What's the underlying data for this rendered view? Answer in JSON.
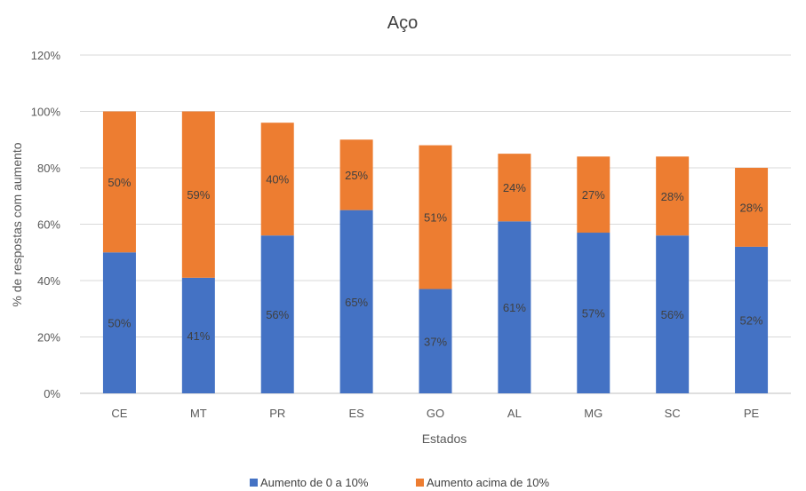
{
  "chart_data": {
    "type": "bar",
    "stacked": true,
    "title": "Aço",
    "xlabel": "Estados",
    "ylabel": "% de respostas com aumento",
    "categories": [
      "CE",
      "MT",
      "PR",
      "ES",
      "GO",
      "AL",
      "MG",
      "SC",
      "PE"
    ],
    "series": [
      {
        "name": "Aumento de 0 a 10%",
        "values": [
          50,
          41,
          56,
          65,
          37,
          61,
          57,
          56,
          52
        ],
        "labels": [
          "50%",
          "41%",
          "56%",
          "65%",
          "37%",
          "61%",
          "57%",
          "56%",
          "52%"
        ],
        "color": "#4472C4"
      },
      {
        "name": "Aumento acima de 10%",
        "values": [
          50,
          59,
          40,
          25,
          51,
          24,
          27,
          28,
          28
        ],
        "labels": [
          "50%",
          "59%",
          "40%",
          "25%",
          "51%",
          "24%",
          "27%",
          "28%",
          "28%"
        ],
        "color": "#ED7D31"
      }
    ],
    "ylim": [
      0,
      120
    ],
    "yticks": [
      "0%",
      "20%",
      "40%",
      "60%",
      "80%",
      "100%",
      "120%"
    ],
    "grid": true,
    "legend_position": "bottom"
  }
}
